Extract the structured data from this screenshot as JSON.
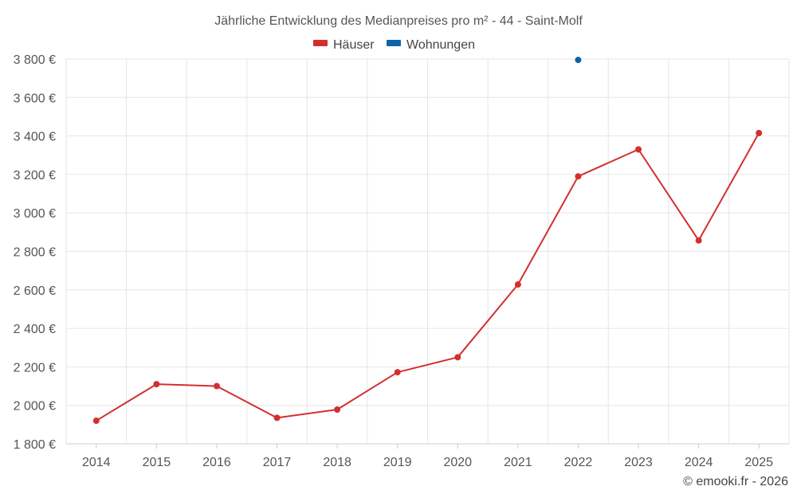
{
  "chart_data": {
    "type": "line",
    "title": "Jährliche Entwicklung des Medianpreises pro m² - 44 - Saint-Molf",
    "categories": [
      "2014",
      "2015",
      "2016",
      "2017",
      "2018",
      "2019",
      "2020",
      "2021",
      "2022",
      "2023",
      "2024",
      "2025"
    ],
    "series": [
      {
        "name": "Häuser",
        "color": "#d32f2f",
        "values": [
          1920,
          2110,
          2100,
          1935,
          1978,
          2172,
          2250,
          2628,
          3190,
          3330,
          2857,
          3415
        ]
      },
      {
        "name": "Wohnungen",
        "color": "#0d63a5",
        "values": [
          null,
          null,
          null,
          null,
          null,
          null,
          null,
          null,
          3795,
          null,
          null,
          null
        ]
      }
    ],
    "ylim": [
      1800,
      3800
    ],
    "yticks": [
      1800,
      2000,
      2200,
      2400,
      2600,
      2800,
      3000,
      3200,
      3400,
      3600,
      3800
    ],
    "ytick_labels": [
      "1 800 €",
      "2 000 €",
      "2 200 €",
      "2 400 €",
      "2 600 €",
      "2 800 €",
      "3 000 €",
      "3 200 €",
      "3 400 €",
      "3 600 €",
      "3 800 €"
    ],
    "xlabel": "",
    "ylabel": "",
    "grid": true,
    "legend_position": "top-center"
  },
  "credit": "© emooki.fr - 2026"
}
